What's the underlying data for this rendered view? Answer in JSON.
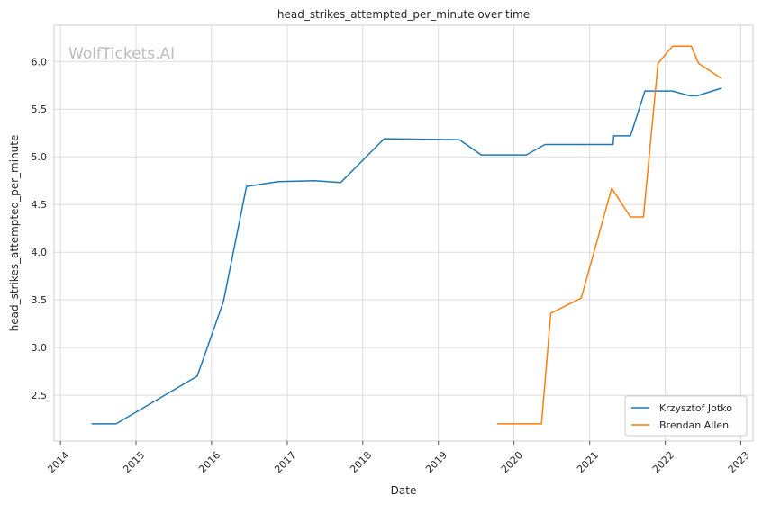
{
  "chart_data": {
    "type": "line",
    "title": "head_strikes_attempted_per_minute over time",
    "xlabel": "Date",
    "ylabel": "head_strikes_attempted_per_minute",
    "watermark": "WolfTickets.AI",
    "x_ticks": [
      "2014",
      "2015",
      "2016",
      "2017",
      "2018",
      "2019",
      "2020",
      "2021",
      "2022",
      "2023"
    ],
    "y_ticks": [
      "2.5",
      "3.0",
      "3.5",
      "4.0",
      "4.5",
      "5.0",
      "5.5",
      "6.0"
    ],
    "xlim": [
      "2013-12-01",
      "2023-03-01"
    ],
    "ylim": [
      2.02,
      6.38
    ],
    "grid": true,
    "legend_position": "lower-right",
    "series": [
      {
        "name": "Krzysztof Jotko",
        "color": "#1f77b4",
        "points": [
          [
            "2014-05-31",
            2.2
          ],
          [
            "2014-09-27",
            2.2
          ],
          [
            "2015-10-24",
            2.7
          ],
          [
            "2016-02-27",
            3.48
          ],
          [
            "2016-06-18",
            4.69
          ],
          [
            "2016-11-19",
            4.74
          ],
          [
            "2017-05-13",
            4.75
          ],
          [
            "2017-09-16",
            4.73
          ],
          [
            "2018-04-14",
            5.19
          ],
          [
            "2019-04-13",
            5.18
          ],
          [
            "2019-07-27",
            5.02
          ],
          [
            "2020-02-29",
            5.02
          ],
          [
            "2020-05-30",
            5.13
          ],
          [
            "2021-04-24",
            5.13
          ],
          [
            "2021-04-27",
            5.22
          ],
          [
            "2021-07-17",
            5.22
          ],
          [
            "2021-09-25",
            5.69
          ],
          [
            "2022-02-05",
            5.69
          ],
          [
            "2022-04-30",
            5.64
          ],
          [
            "2022-06-04",
            5.64
          ],
          [
            "2022-10-01",
            5.72
          ]
        ]
      },
      {
        "name": "Brendan Allen",
        "color": "#ff7f0e",
        "points": [
          [
            "2019-10-12",
            2.2
          ],
          [
            "2020-05-13",
            2.2
          ],
          [
            "2020-06-27",
            3.36
          ],
          [
            "2020-11-21",
            3.52
          ],
          [
            "2021-04-17",
            4.67
          ],
          [
            "2021-07-17",
            4.37
          ],
          [
            "2021-09-18",
            4.37
          ],
          [
            "2021-11-27",
            5.98
          ],
          [
            "2022-02-05",
            6.16
          ],
          [
            "2022-05-07",
            6.16
          ],
          [
            "2022-06-11",
            5.98
          ],
          [
            "2022-10-01",
            5.82
          ]
        ]
      }
    ]
  }
}
